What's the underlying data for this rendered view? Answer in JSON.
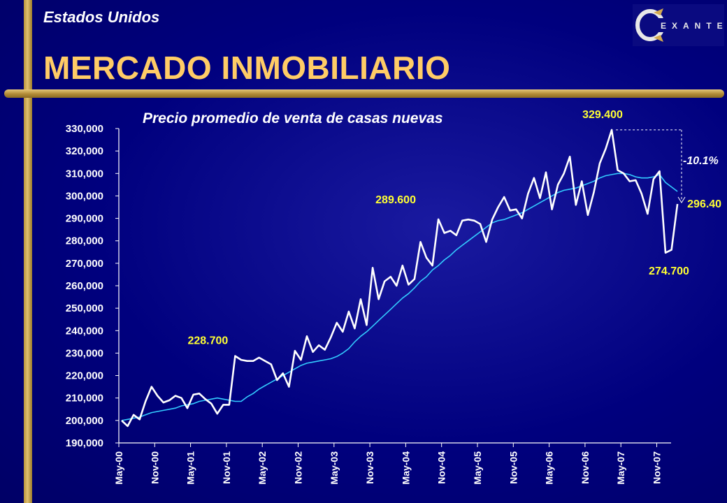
{
  "header": {
    "country": "Estados Unidos",
    "title": "MERCADO INMOBILIARIO",
    "logo_text": "EXANTE"
  },
  "colors": {
    "background": "#000080",
    "title": "#ffcc66",
    "accent_bar": "#c9a24b",
    "line": "#ffffff",
    "trend": "#33ccff",
    "annotation": "#ffff33"
  },
  "chart_data": {
    "type": "line",
    "title": "Precio promedio de venta de casas nuevas",
    "ylim": [
      190000,
      330000
    ],
    "yticks": [
      "190,000",
      "200,000",
      "210,000",
      "220,000",
      "230,000",
      "240,000",
      "250,000",
      "260,000",
      "270,000",
      "280,000",
      "290,000",
      "300,000",
      "310,000",
      "320,000",
      "330,000"
    ],
    "ytick_values": [
      190000,
      200000,
      210000,
      220000,
      230000,
      240000,
      250000,
      260000,
      270000,
      280000,
      290000,
      300000,
      310000,
      320000,
      330000
    ],
    "xlabels": [
      "May-00",
      "Nov-00",
      "May-01",
      "Nov-01",
      "May-02",
      "Nov-02",
      "May-03",
      "Nov-03",
      "May-04",
      "Nov-04",
      "May-05",
      "Nov-05",
      "May-06",
      "Nov-06",
      "May-07",
      "Nov-07"
    ],
    "x_start": "May-00",
    "series": [
      {
        "values": [
          200000,
          197500,
          202500,
          200500,
          208500,
          215000,
          211000,
          208000,
          209000,
          211000,
          210000,
          205500,
          211500,
          212000,
          209500,
          207500,
          203000,
          207000,
          207000,
          228700,
          227000,
          226500,
          226500,
          228000,
          226500,
          225000,
          218000,
          221000,
          215000,
          231000,
          227000,
          237500,
          230500,
          233500,
          231500,
          237000,
          243500,
          239500,
          248500,
          241000,
          254000,
          242500,
          268000,
          254000,
          262000,
          264000,
          260000,
          269000,
          260500,
          263000,
          279500,
          272500,
          269000,
          289600,
          283500,
          284500,
          282500,
          289000,
          289500,
          289000,
          287500,
          279500,
          289500,
          295000,
          299500,
          293500,
          294000,
          290000,
          301000,
          308000,
          299000,
          310500,
          294000,
          305000,
          310000,
          317500,
          296000,
          306500,
          291500,
          301500,
          314500,
          321000,
          329400,
          311500,
          310000,
          306500,
          307000,
          301000,
          292000,
          307500,
          311000,
          274700,
          276000,
          296400
        ]
      },
      {
        "values": [
          200000,
          200500,
          201000,
          201500,
          202500,
          203500,
          204000,
          204500,
          205000,
          205500,
          206500,
          207000,
          207500,
          208500,
          209000,
          209500,
          210000,
          209500,
          209000,
          208500,
          208500,
          210500,
          212000,
          214000,
          215500,
          217000,
          218500,
          220000,
          221500,
          223000,
          224500,
          225500,
          226000,
          226500,
          227000,
          227500,
          228500,
          230000,
          232000,
          235000,
          237500,
          239500,
          242000,
          244500,
          247000,
          249500,
          252000,
          254500,
          256500,
          259000,
          262000,
          264000,
          267000,
          269000,
          271500,
          273500,
          276000,
          278000,
          280000,
          282000,
          284000,
          286000,
          288000,
          289000,
          289500,
          290500,
          291500,
          292500,
          294000,
          295500,
          297000,
          298500,
          300000,
          301500,
          302500,
          303000,
          303500,
          304500,
          305500,
          306500,
          308000,
          309000,
          309500,
          310000,
          310000,
          309500,
          308500,
          308000,
          308000,
          308500,
          309500,
          306000,
          304000,
          302000
        ]
      }
    ],
    "annotations": [
      {
        "label": "228.700",
        "index": 19
      },
      {
        "label": "289.600",
        "index": 53
      },
      {
        "label": "329.400",
        "index": 82
      },
      {
        "label": "274.700",
        "index": 91
      },
      {
        "label": "296.40",
        "index": 93
      }
    ],
    "change_label": "-10.1%"
  }
}
